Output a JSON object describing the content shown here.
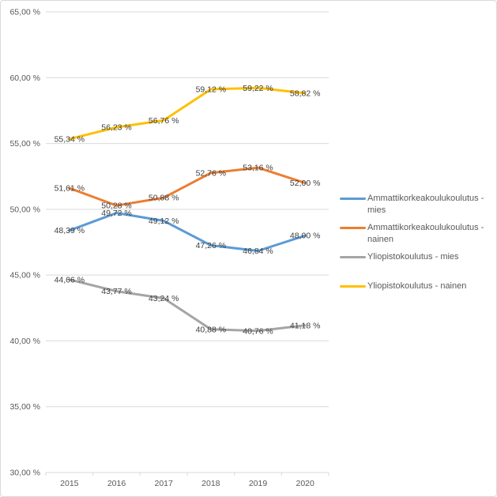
{
  "colors": {
    "grid": "#D9D9D9",
    "border": "#D9D9D9",
    "axis_text": "#595959",
    "data_label_text": "#404040"
  },
  "chart_data": {
    "type": "line",
    "title": "",
    "xlabel": "",
    "ylabel": "",
    "grid": true,
    "legend_position": "right",
    "categories": [
      "2015",
      "2016",
      "2017",
      "2018",
      "2019",
      "2020"
    ],
    "ylim": [
      30,
      65
    ],
    "y_tick_step": 5,
    "y_tick_labels": [
      "30,00 %",
      "35,00 %",
      "40,00 %",
      "45,00 %",
      "50,00 %",
      "55,00 %",
      "60,00 %",
      "65,00 %"
    ],
    "series": [
      {
        "name": "Ammattikorkeakoulukoulutus - mies",
        "color": "#5B9BD5",
        "values": [
          48.39,
          49.72,
          49.12,
          47.26,
          46.84,
          48.0
        ],
        "labels": [
          "48,39 %",
          "49,72 %",
          "49,12 %",
          "47,26 %",
          "46,84 %",
          "48,00 %"
        ]
      },
      {
        "name": "Ammattikorkeakoulukoulutus - nainen",
        "color": "#ED7D31",
        "values": [
          51.61,
          50.28,
          50.88,
          52.76,
          53.16,
          52.0
        ],
        "labels": [
          "51,61 %",
          "50,28 %",
          "50,88 %",
          "52,76 %",
          "53,16 %",
          "52,00 %"
        ]
      },
      {
        "name": "Yliopistokoulutus - mies",
        "color": "#A5A5A5",
        "values": [
          44.66,
          43.77,
          43.24,
          40.88,
          40.76,
          41.18
        ],
        "labels": [
          "44,66 %",
          "43,77 %",
          "43,24 %",
          "40,88 %",
          "40,76 %",
          "41,18 %"
        ]
      },
      {
        "name": "Yliopistokoulutus - nainen",
        "color": "#FFC000",
        "values": [
          55.34,
          56.23,
          56.76,
          59.12,
          59.22,
          58.82
        ],
        "labels": [
          "55,34 %",
          "56,23 %",
          "56,76 %",
          "59,12 %",
          "59,22 %",
          "58,82 %"
        ]
      }
    ]
  }
}
